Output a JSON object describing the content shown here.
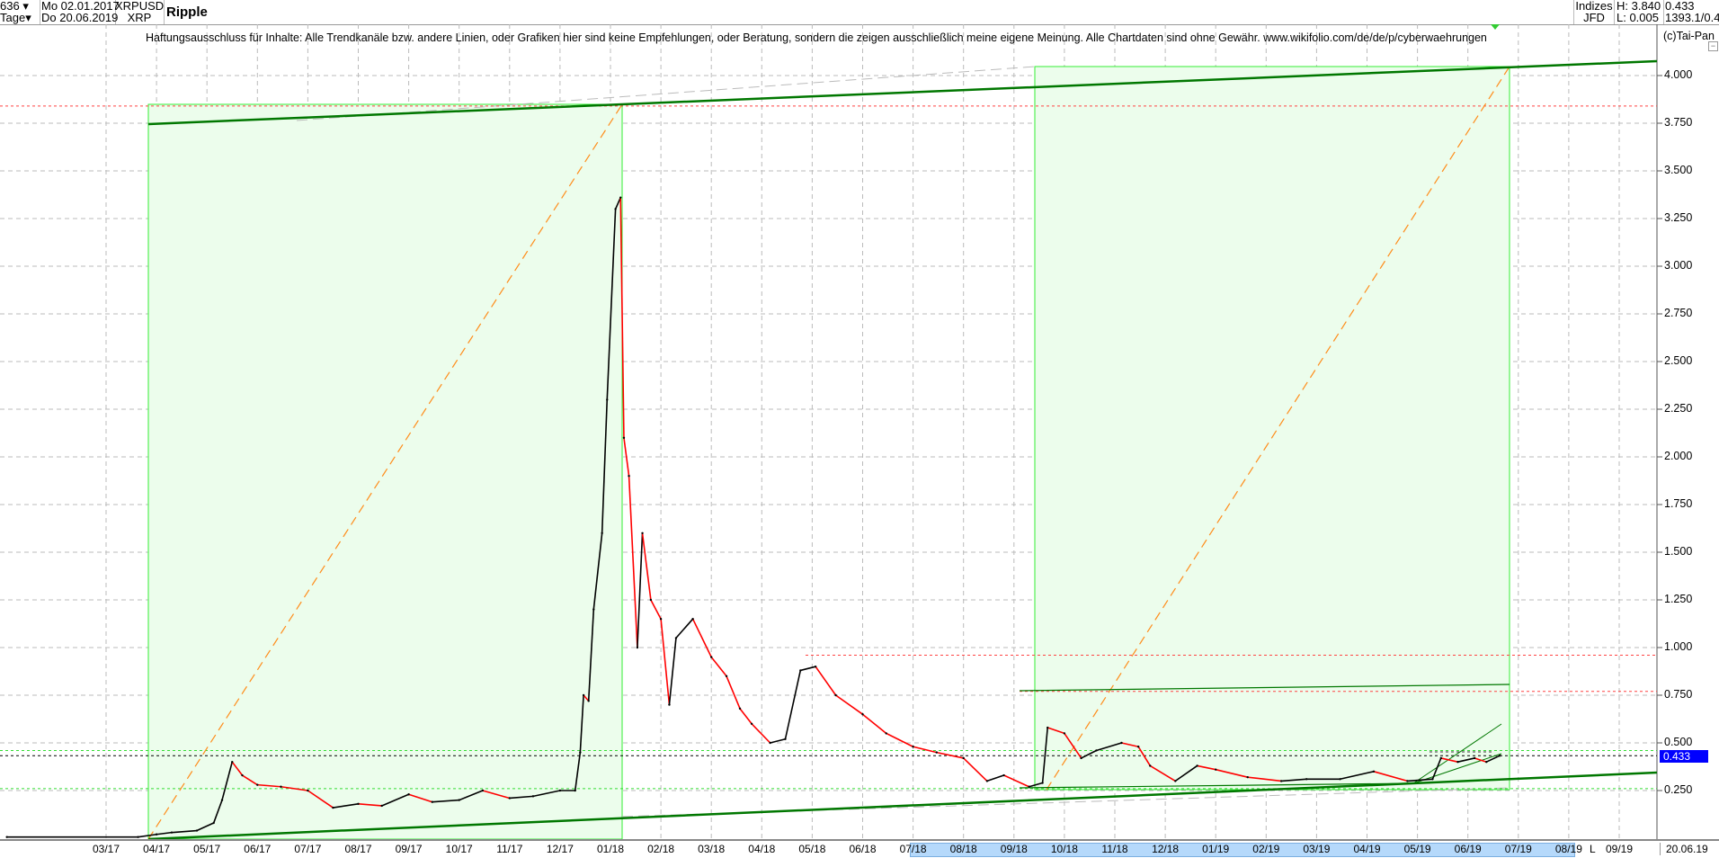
{
  "header": {
    "count_select": "636",
    "period_select": "Tage",
    "date_from": "Mo 02.01.2017",
    "date_to": "Do 20.06.2019",
    "symbol": "XRPUSD",
    "symbol_short": "XRP",
    "title": "Ripple",
    "index_label": "Indizes",
    "source_label": "JFD",
    "high": "H: 3.840",
    "low": "L: 0.005",
    "last": "0.433",
    "info": "1393.1/0.4"
  },
  "disclaimer": "Haftungsausschluss für Inhalte: Alle Trendkanäle bzw. andere Linien, oder Grafiken hier sind keine Empfehlungen, oder Beratung, sondern die zeigen ausschließlich meine eigene Meinung. Alle Chartdaten sind ohne Gewähr.  www.wikifolio.com/de/de/p/cyberwaehrungen",
  "copyright": "(c)Tai-Pan",
  "current_price_label": "0.433",
  "colors": {
    "up": "#000000",
    "down": "#ff0000",
    "box_fill": "#ecfdec",
    "box_stroke": "#33ee33",
    "trend": "#007700",
    "projection": "#ff8c1a",
    "price_tag": "#0000ff",
    "xband": "#b5d9fb"
  },
  "chart_data": {
    "type": "line",
    "ylim": [
      0,
      4.25
    ],
    "y_ticks": [
      "4.000",
      "3.750",
      "3.500",
      "3.250",
      "3.000",
      "2.750",
      "2.500",
      "2.250",
      "2.000",
      "1.750",
      "1.500",
      "1.250",
      "1.000",
      "0.750",
      "0.500",
      "0.250"
    ],
    "x_ticks": [
      "03/17",
      "04/17",
      "05/17",
      "06/17",
      "07/17",
      "08/17",
      "09/17",
      "10/17",
      "11/17",
      "12/17",
      "01/18",
      "02/18",
      "03/18",
      "04/18",
      "05/18",
      "06/18",
      "07/18",
      "08/18",
      "09/18",
      "10/18",
      "11/18",
      "12/18",
      "01/19",
      "02/19",
      "03/19",
      "04/19",
      "05/19",
      "06/19",
      "07/19",
      "08/19",
      "09/19"
    ],
    "x_end_label": "L",
    "last_date": "20.06.19",
    "horizontal_levels": [
      {
        "value": 3.84,
        "style": "red-dotted"
      },
      {
        "value": 0.96,
        "style": "red-dotted"
      },
      {
        "value": 0.77,
        "style": "red-dotted"
      },
      {
        "value": 0.46,
        "style": "green-dotted"
      },
      {
        "value": 0.433,
        "style": "black-dotted"
      },
      {
        "value": 0.26,
        "style": "green-dotted"
      }
    ],
    "series": [
      {
        "x": "2017-01-02",
        "y": 0.006
      },
      {
        "x": "2017-03-20",
        "y": 0.006
      },
      {
        "x": "2017-03-31",
        "y": 0.02
      },
      {
        "x": "2017-04-10",
        "y": 0.03
      },
      {
        "x": "2017-04-25",
        "y": 0.04
      },
      {
        "x": "2017-05-05",
        "y": 0.08
      },
      {
        "x": "2017-05-10",
        "y": 0.2
      },
      {
        "x": "2017-05-16",
        "y": 0.4
      },
      {
        "x": "2017-05-22",
        "y": 0.33
      },
      {
        "x": "2017-06-01",
        "y": 0.28
      },
      {
        "x": "2017-06-15",
        "y": 0.27
      },
      {
        "x": "2017-07-01",
        "y": 0.25
      },
      {
        "x": "2017-07-16",
        "y": 0.16
      },
      {
        "x": "2017-08-01",
        "y": 0.18
      },
      {
        "x": "2017-08-15",
        "y": 0.17
      },
      {
        "x": "2017-09-01",
        "y": 0.23
      },
      {
        "x": "2017-09-15",
        "y": 0.19
      },
      {
        "x": "2017-10-01",
        "y": 0.2
      },
      {
        "x": "2017-10-15",
        "y": 0.25
      },
      {
        "x": "2017-11-01",
        "y": 0.21
      },
      {
        "x": "2017-11-15",
        "y": 0.22
      },
      {
        "x": "2017-12-01",
        "y": 0.25
      },
      {
        "x": "2017-12-10",
        "y": 0.25
      },
      {
        "x": "2017-12-13",
        "y": 0.45
      },
      {
        "x": "2017-12-15",
        "y": 0.75
      },
      {
        "x": "2017-12-18",
        "y": 0.72
      },
      {
        "x": "2017-12-21",
        "y": 1.2
      },
      {
        "x": "2017-12-26",
        "y": 1.6
      },
      {
        "x": "2017-12-29",
        "y": 2.3
      },
      {
        "x": "2018-01-04",
        "y": 3.3
      },
      {
        "x": "2018-01-07",
        "y": 3.36
      },
      {
        "x": "2018-01-09",
        "y": 2.1
      },
      {
        "x": "2018-01-12",
        "y": 1.9
      },
      {
        "x": "2018-01-17",
        "y": 1.0
      },
      {
        "x": "2018-01-20",
        "y": 1.6
      },
      {
        "x": "2018-01-25",
        "y": 1.25
      },
      {
        "x": "2018-02-01",
        "y": 1.15
      },
      {
        "x": "2018-02-06",
        "y": 0.7
      },
      {
        "x": "2018-02-10",
        "y": 1.05
      },
      {
        "x": "2018-02-20",
        "y": 1.15
      },
      {
        "x": "2018-03-01",
        "y": 0.95
      },
      {
        "x": "2018-03-10",
        "y": 0.85
      },
      {
        "x": "2018-03-18",
        "y": 0.68
      },
      {
        "x": "2018-03-25",
        "y": 0.6
      },
      {
        "x": "2018-04-06",
        "y": 0.5
      },
      {
        "x": "2018-04-15",
        "y": 0.52
      },
      {
        "x": "2018-04-24",
        "y": 0.88
      },
      {
        "x": "2018-05-03",
        "y": 0.9
      },
      {
        "x": "2018-05-15",
        "y": 0.75
      },
      {
        "x": "2018-06-01",
        "y": 0.65
      },
      {
        "x": "2018-06-15",
        "y": 0.55
      },
      {
        "x": "2018-07-01",
        "y": 0.48
      },
      {
        "x": "2018-07-15",
        "y": 0.45
      },
      {
        "x": "2018-08-01",
        "y": 0.42
      },
      {
        "x": "2018-08-15",
        "y": 0.3
      },
      {
        "x": "2018-08-25",
        "y": 0.33
      },
      {
        "x": "2018-09-10",
        "y": 0.27
      },
      {
        "x": "2018-09-18",
        "y": 0.29
      },
      {
        "x": "2018-09-21",
        "y": 0.58
      },
      {
        "x": "2018-10-01",
        "y": 0.55
      },
      {
        "x": "2018-10-11",
        "y": 0.42
      },
      {
        "x": "2018-10-20",
        "y": 0.46
      },
      {
        "x": "2018-11-05",
        "y": 0.5
      },
      {
        "x": "2018-11-15",
        "y": 0.48
      },
      {
        "x": "2018-11-22",
        "y": 0.38
      },
      {
        "x": "2018-12-07",
        "y": 0.3
      },
      {
        "x": "2018-12-20",
        "y": 0.38
      },
      {
        "x": "2019-01-01",
        "y": 0.36
      },
      {
        "x": "2019-01-20",
        "y": 0.32
      },
      {
        "x": "2019-02-10",
        "y": 0.3
      },
      {
        "x": "2019-02-25",
        "y": 0.31
      },
      {
        "x": "2019-03-15",
        "y": 0.31
      },
      {
        "x": "2019-04-05",
        "y": 0.35
      },
      {
        "x": "2019-04-25",
        "y": 0.3
      },
      {
        "x": "2019-05-10",
        "y": 0.31
      },
      {
        "x": "2019-05-15",
        "y": 0.42
      },
      {
        "x": "2019-05-25",
        "y": 0.4
      },
      {
        "x": "2019-06-05",
        "y": 0.42
      },
      {
        "x": "2019-06-12",
        "y": 0.4
      },
      {
        "x": "2019-06-20",
        "y": 0.433
      }
    ]
  }
}
